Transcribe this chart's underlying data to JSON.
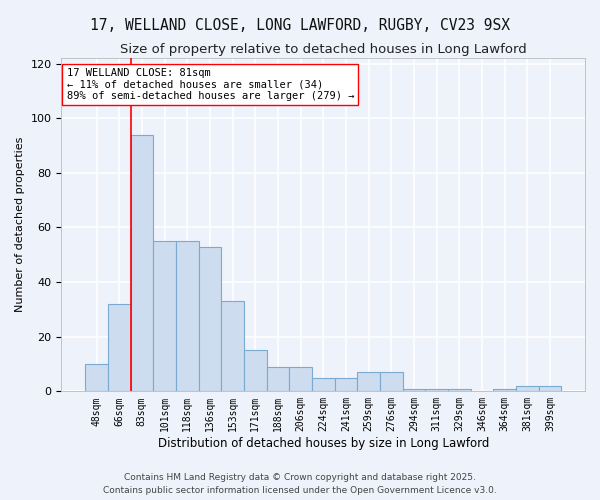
{
  "title1": "17, WELLAND CLOSE, LONG LAWFORD, RUGBY, CV23 9SX",
  "title2": "Size of property relative to detached houses in Long Lawford",
  "xlabel": "Distribution of detached houses by size in Long Lawford",
  "ylabel": "Number of detached properties",
  "categories": [
    "48sqm",
    "66sqm",
    "83sqm",
    "101sqm",
    "118sqm",
    "136sqm",
    "153sqm",
    "171sqm",
    "188sqm",
    "206sqm",
    "224sqm",
    "241sqm",
    "259sqm",
    "276sqm",
    "294sqm",
    "311sqm",
    "329sqm",
    "346sqm",
    "364sqm",
    "381sqm",
    "399sqm"
  ],
  "values": [
    10,
    32,
    94,
    55,
    55,
    53,
    33,
    15,
    9,
    9,
    5,
    5,
    7,
    7,
    1,
    1,
    1,
    0,
    1,
    2,
    2
  ],
  "bar_color": "#cddcef",
  "bar_edge_color": "#7aaad0",
  "vline_x": 2.0,
  "vline_color": "red",
  "annotation_text": "17 WELLAND CLOSE: 81sqm\n← 11% of detached houses are smaller (34)\n89% of semi-detached houses are larger (279) →",
  "ylim": [
    0,
    122
  ],
  "yticks": [
    0,
    20,
    40,
    60,
    80,
    100,
    120
  ],
  "background_color": "#eef2fa",
  "grid_color": "#ffffff",
  "footer_text": "Contains HM Land Registry data © Crown copyright and database right 2025.\nContains public sector information licensed under the Open Government Licence v3.0.",
  "title1_fontsize": 10.5,
  "title2_fontsize": 9.5,
  "xlabel_fontsize": 8.5,
  "ylabel_fontsize": 8,
  "tick_fontsize": 7,
  "annotation_fontsize": 7.5,
  "footer_fontsize": 6.5
}
